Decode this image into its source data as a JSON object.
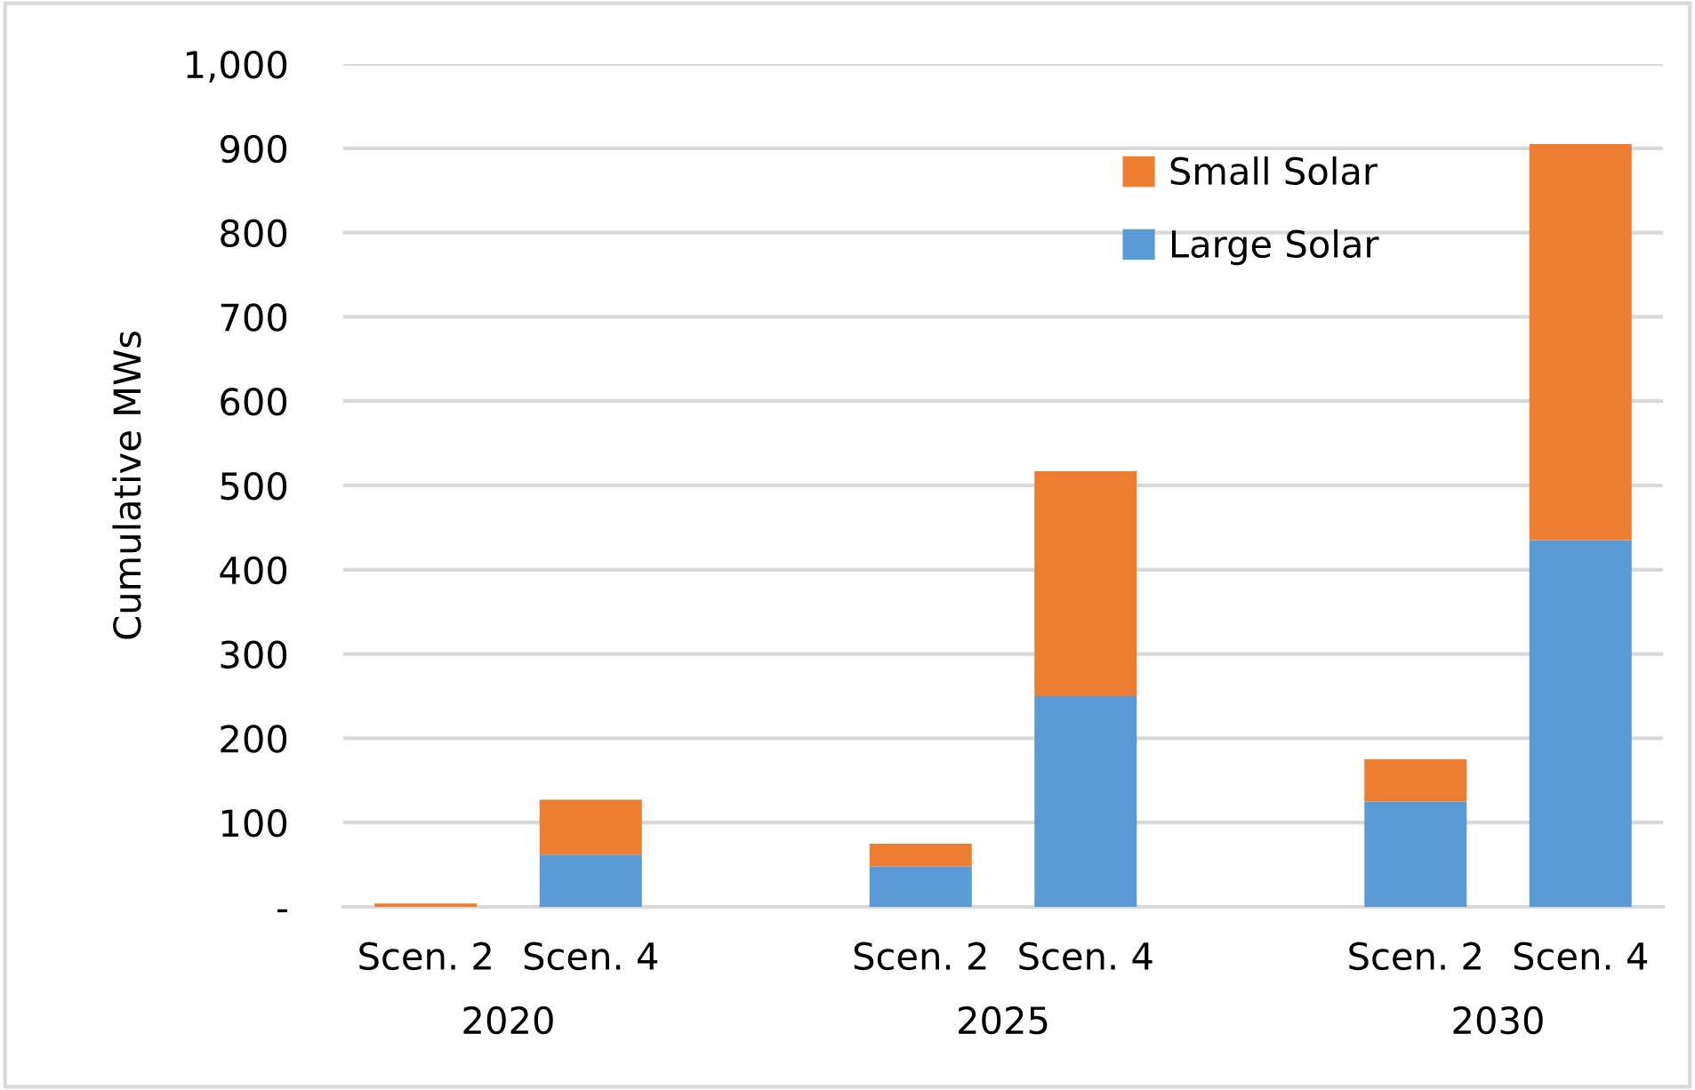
{
  "chart_data": {
    "type": "bar",
    "stacked": true,
    "ylabel": "Cumulative MWs",
    "categories": [
      "Scen. 2",
      "Scen. 4",
      null,
      "Scen. 2",
      "Scen. 4",
      null,
      "Scen. 2",
      "Scen. 4"
    ],
    "series": [
      {
        "name": "Large Solar",
        "color": "#5b9bd5",
        "values": [
          0,
          62,
          null,
          48,
          250,
          null,
          125,
          435
        ]
      },
      {
        "name": "Small Solar",
        "color": "#ed7d31",
        "values": [
          4,
          65,
          null,
          27,
          267,
          null,
          50,
          470
        ]
      }
    ],
    "annotations": [
      "2020",
      "2025",
      "2030"
    ],
    "ylim": [
      0,
      1000
    ],
    "yticks": [
      {
        "value": 0,
        "label": "-"
      },
      100,
      200,
      300,
      400,
      500,
      600,
      700,
      800,
      900,
      {
        "value": 1000,
        "label": "1,000"
      }
    ],
    "grid": "y",
    "legend": "top right"
  }
}
